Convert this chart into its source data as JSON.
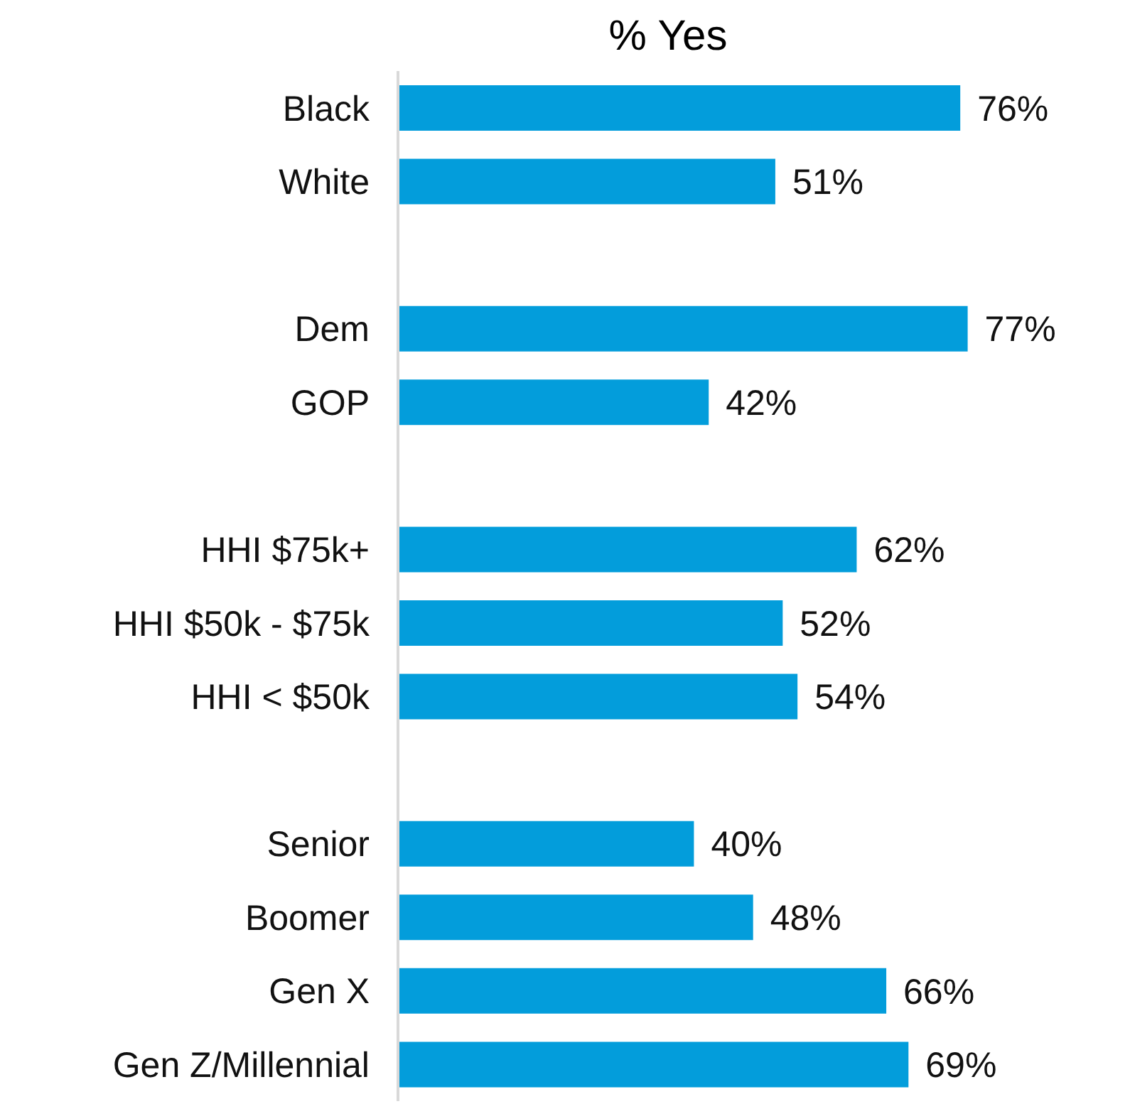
{
  "chart_data": {
    "type": "bar",
    "orientation": "horizontal",
    "title": "% Yes",
    "categories": [
      "Black",
      "White",
      null,
      "Dem",
      "GOP",
      null,
      "HHI $75k+",
      "HHI $50k - $75k",
      "HHI < $50k",
      null,
      "Senior",
      "Boomer",
      "Gen X",
      "Gen Z/Millennial"
    ],
    "values": [
      76,
      51,
      null,
      77,
      42,
      null,
      62,
      52,
      54,
      null,
      40,
      48,
      66,
      69
    ],
    "value_labels": [
      "76%",
      "51%",
      null,
      "77%",
      "42%",
      null,
      "62%",
      "52%",
      "54%",
      null,
      "40%",
      "48%",
      "66%",
      "69%"
    ],
    "color": "#039ddb",
    "tick_labels": "y"
  }
}
